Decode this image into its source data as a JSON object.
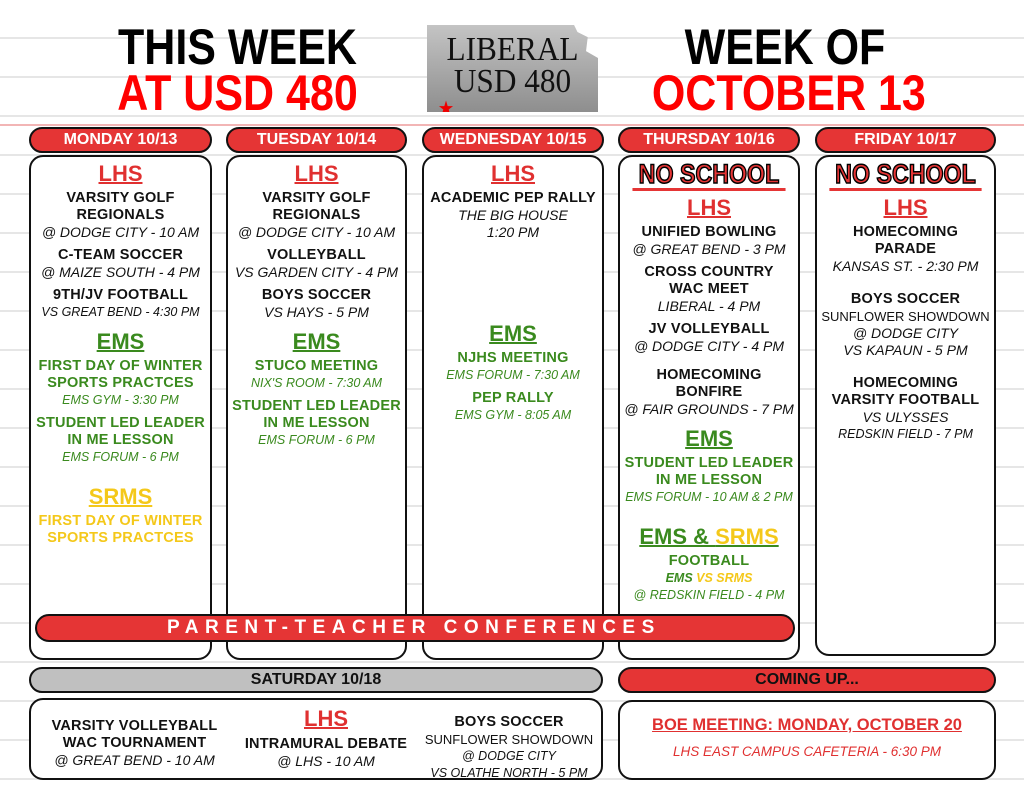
{
  "header": {
    "line1_left": "THIS WEEK",
    "line2_left": "AT USD 480",
    "line1_right": "WEEK OF",
    "line2_right": "OCTOBER 13",
    "logo": {
      "line1": "LIBERAL",
      "line2": "USD 480",
      "star": "★"
    }
  },
  "colors": {
    "red": "#e53535",
    "green": "#3a8a1e",
    "yellow": "#f4c81a",
    "gray": "#c0c0c0"
  },
  "days": [
    {
      "label": "MONDAY 10/13",
      "sections": [
        {
          "school": "LHS",
          "color": "lhs",
          "events": [
            [
              {
                "k": "t",
                "text": "VARSITY GOLF"
              },
              {
                "k": "t",
                "text": "REGIONALS"
              },
              {
                "k": "d",
                "text": "@ DODGE CITY - 10 AM"
              }
            ],
            [
              {
                "k": "t",
                "text": "C-TEAM SOCCER"
              },
              {
                "k": "d",
                "text": "@ MAIZE SOUTH - 4 PM"
              }
            ],
            [
              {
                "k": "t",
                "text": "9TH/JV FOOTBALL"
              },
              {
                "k": "di",
                "text": "VS GREAT BEND - 4:30 PM"
              }
            ]
          ]
        },
        {
          "school": "EMS",
          "color": "ems",
          "events": [
            [
              {
                "k": "t",
                "text": "FIRST DAY OF WINTER"
              },
              {
                "k": "t",
                "text": "SPORTS PRACTCES"
              },
              {
                "k": "di",
                "text": "EMS GYM - 3:30 PM"
              }
            ],
            [
              {
                "k": "t",
                "text": "STUDENT LED LEADER"
              },
              {
                "k": "t",
                "text": "IN ME LESSON"
              },
              {
                "k": "di",
                "text": "EMS FORUM - 6 PM"
              }
            ]
          ]
        },
        {
          "school": "SRMS",
          "color": "srms",
          "events": [
            [
              {
                "k": "t",
                "text": "FIRST DAY OF WINTER"
              },
              {
                "k": "t",
                "text": "SPORTS PRACTCES"
              }
            ]
          ]
        }
      ]
    },
    {
      "label": "TUESDAY 10/14",
      "sections": [
        {
          "school": "LHS",
          "color": "lhs",
          "events": [
            [
              {
                "k": "t",
                "text": "VARSITY GOLF"
              },
              {
                "k": "t",
                "text": "REGIONALS"
              },
              {
                "k": "d",
                "text": "@ DODGE CITY - 10 AM"
              }
            ],
            [
              {
                "k": "t",
                "text": "VOLLEYBALL"
              },
              {
                "k": "d",
                "text": "VS GARDEN CITY - 4 PM"
              }
            ],
            [
              {
                "k": "t",
                "text": "BOYS SOCCER"
              },
              {
                "k": "d",
                "text": "VS HAYS - 5 PM"
              }
            ]
          ]
        },
        {
          "school": "EMS",
          "color": "ems",
          "events": [
            [
              {
                "k": "t",
                "text": "STUCO MEETING"
              },
              {
                "k": "di",
                "text": "NIX'S ROOM - 7:30 AM"
              }
            ],
            [
              {
                "k": "t",
                "text": "STUDENT LED LEADER"
              },
              {
                "k": "t",
                "text": "IN ME LESSON"
              },
              {
                "k": "di",
                "text": "EMS FORUM - 6 PM"
              }
            ]
          ]
        }
      ]
    },
    {
      "label": "WEDNESDAY 10/15",
      "sections": [
        {
          "school": "LHS",
          "color": "lhs",
          "events": [
            [
              {
                "k": "t",
                "text": "ACADEMIC PEP RALLY"
              },
              {
                "k": "d",
                "text": "THE BIG HOUSE"
              },
              {
                "k": "d",
                "text": "1:20 PM"
              }
            ]
          ]
        },
        {
          "school": "EMS",
          "color": "ems",
          "events": [
            [
              {
                "k": "t",
                "text": "NJHS MEETING"
              },
              {
                "k": "di",
                "text": "EMS FORUM - 7:30 AM"
              }
            ],
            [
              {
                "k": "t",
                "text": "PEP RALLY"
              },
              {
                "k": "di",
                "text": "EMS GYM - 8:05 AM"
              }
            ]
          ]
        }
      ]
    },
    {
      "label": "THURSDAY 10/16",
      "no_school": "NO SCHOOL",
      "sections": [
        {
          "school": "LHS",
          "color": "lhs",
          "events": [
            [
              {
                "k": "t",
                "text": "UNIFIED BOWLING"
              },
              {
                "k": "d",
                "text": "@ GREAT BEND - 3 PM"
              }
            ],
            [
              {
                "k": "t",
                "text": "CROSS COUNTRY"
              },
              {
                "k": "t",
                "text": "WAC MEET"
              },
              {
                "k": "d",
                "text": "LIBERAL - 4 PM"
              }
            ],
            [
              {
                "k": "t",
                "text": "JV VOLLEYBALL"
              },
              {
                "k": "d",
                "text": "@ DODGE CITY - 4 PM"
              }
            ],
            [
              {
                "k": "t",
                "text": "HOMECOMING"
              },
              {
                "k": "t",
                "text": "BONFIRE"
              },
              {
                "k": "d",
                "text": "@ FAIR GROUNDS - 7 PM"
              }
            ]
          ]
        },
        {
          "school": "EMS",
          "color": "ems",
          "events": [
            [
              {
                "k": "t",
                "text": "STUDENT LED LEADER"
              },
              {
                "k": "t",
                "text": "IN ME LESSON"
              },
              {
                "k": "di",
                "text": "EMS FORUM - 10 AM & 2 PM"
              }
            ]
          ]
        },
        {
          "school": "EMS &",
          "school2": "SRMS",
          "color": "ems",
          "events": [
            [
              {
                "k": "t",
                "text": "FOOTBALL"
              },
              {
                "k": "di",
                "text": "EMS",
                "text2": "VS SRMS",
                "bold": true
              },
              {
                "k": "di",
                "text": "@ REDSKIN FIELD - 4 PM"
              }
            ]
          ]
        }
      ]
    },
    {
      "label": "FRIDAY 10/17",
      "no_school": "NO SCHOOL",
      "sections": [
        {
          "school": "LHS",
          "color": "lhs",
          "events": [
            [
              {
                "k": "t",
                "text": "HOMECOMING"
              },
              {
                "k": "t",
                "text": "PARADE"
              },
              {
                "k": "d",
                "text": "KANSAS ST. - 2:30 PM"
              }
            ],
            [
              {
                "k": "t",
                "text": "BOYS SOCCER"
              },
              {
                "k": "s",
                "text": "SUNFLOWER SHOWDOWN"
              },
              {
                "k": "d",
                "text": "@ DODGE CITY"
              },
              {
                "k": "d",
                "text": "VS KAPAUN - 5 PM"
              }
            ],
            [
              {
                "k": "t",
                "text": "HOMECOMING"
              },
              {
                "k": "t",
                "text": "VARSITY FOOTBALL"
              },
              {
                "k": "d",
                "text": "VS ULYSSES"
              },
              {
                "k": "di",
                "text": "REDSKIN FIELD - 7 PM"
              }
            ]
          ]
        }
      ]
    }
  ],
  "banner": "PARENT-TEACHER CONFERENCES",
  "saturday": {
    "label": "SATURDAY 10/18",
    "school": "LHS",
    "left": [
      {
        "k": "t",
        "text": "VARSITY VOLLEYBALL"
      },
      {
        "k": "t",
        "text": "WAC TOURNAMENT"
      },
      {
        "k": "d",
        "text": "@ GREAT BEND - 10 AM"
      }
    ],
    "center": [
      {
        "k": "t",
        "text": "INTRAMURAL DEBATE"
      },
      {
        "k": "d",
        "text": "@ LHS - 10 AM"
      }
    ],
    "right": [
      {
        "k": "t",
        "text": "BOYS SOCCER"
      },
      {
        "k": "s",
        "text": "SUNFLOWER SHOWDOWN"
      },
      {
        "k": "di",
        "text": "@ DODGE CITY"
      },
      {
        "k": "di",
        "text": "VS OLATHE NORTH - 5 PM"
      }
    ]
  },
  "coming_up": {
    "label": "COMING UP...",
    "title": "BOE MEETING: MONDAY, OCTOBER 20",
    "detail": "LHS EAST CAMPUS CAFETERIA - 6:30 PM"
  }
}
